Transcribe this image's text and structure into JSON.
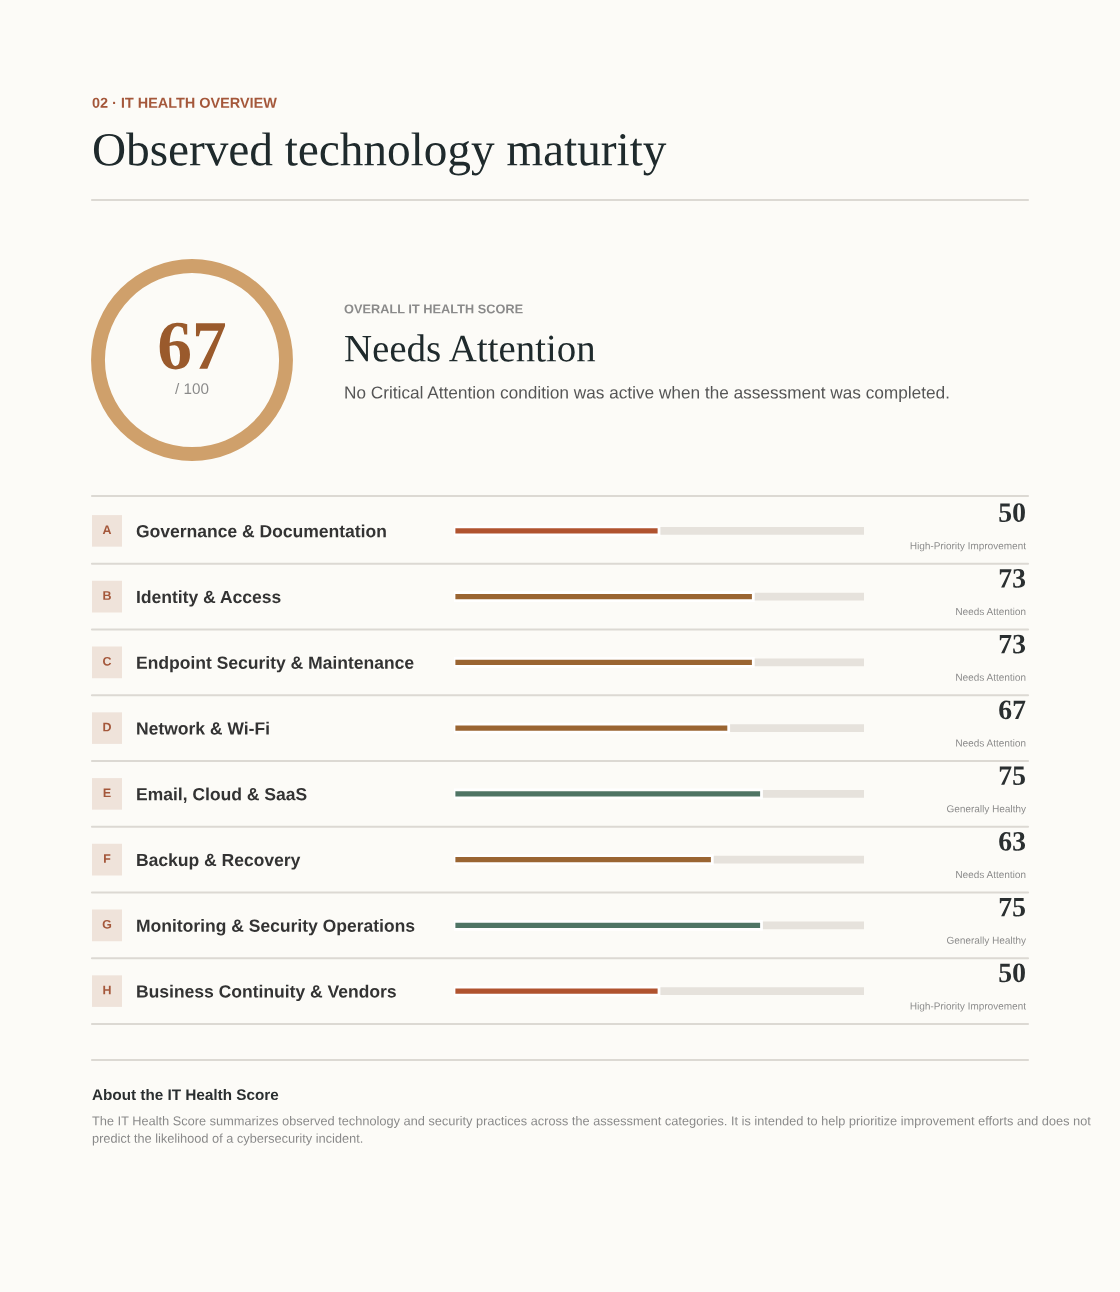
{
  "chart_data": [
    {
      "type": "other",
      "subtitle": "02 · IT HEALTH OVERVIEW",
      "title": "Observed technology maturity",
      "annotations": [
        "67",
        "/ 100",
        "OVERALL IT HEALTH SCORE",
        "Needs Attention",
        "No Critical Attention condition was active when the assessment was completed."
      ]
    },
    {
      "type": "bar",
      "orientation": "horizontal",
      "categories": [
        "Governance & Documentation",
        "Identity & Access",
        "Endpoint Security & Maintenance",
        "Network & Wi-Fi",
        "Email, Cloud & SaaS",
        "Backup & Recovery",
        "Monitoring & Security Operations",
        "Business Continuity & Vendors"
      ],
      "values": [
        50,
        73,
        73,
        67,
        75,
        63,
        75,
        50
      ],
      "colors": [
        "#b0532f",
        "#9a6532",
        "#9a6532",
        "#9a6532",
        "#4f7565",
        "#9a6532",
        "#4f7565",
        "#b0532f"
      ],
      "xlim": [
        0,
        100
      ],
      "data_labels": true,
      "tick_labels": "y",
      "annotations": [
        "A",
        "B",
        "C",
        "D",
        "E",
        "F",
        "G",
        "H",
        "High-Priority Improvement",
        "Needs Attention",
        "Needs Attention",
        "Needs Attention",
        "Generally Healthy",
        "Needs Attention",
        "Generally Healthy",
        "High-Priority Improvement",
        "About the IT Health Score",
        "The IT Health Score summarizes observed technology and security practices across the assessment categories. It is intended to help prioritize improvement efforts and does not predict the likelihood of a cybersecurity incident."
      ]
    }
  ]
}
